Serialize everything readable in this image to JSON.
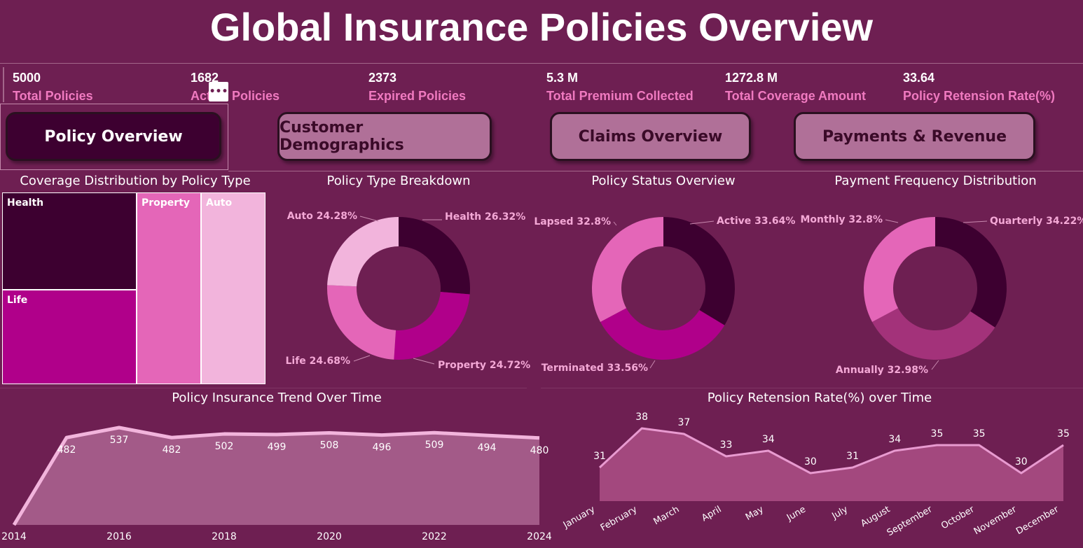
{
  "title": "Global Insurance Policies Overview",
  "kpis": [
    {
      "value": "5000",
      "label": "Total Policies"
    },
    {
      "value": "1682",
      "label": "Active Policies"
    },
    {
      "value": "2373",
      "label": "Expired Policies"
    },
    {
      "value": "5.3 M",
      "label": "Total Premium Collected"
    },
    {
      "value": "1272.8 M",
      "label": "Total Coverage Amount"
    },
    {
      "value": "33.64",
      "label": "Policy Retension Rate(%)"
    }
  ],
  "nav": [
    {
      "label": "Policy Overview",
      "active": true
    },
    {
      "label": "Customer Demographics",
      "active": false
    },
    {
      "label": "Claims Overview",
      "active": false
    },
    {
      "label": "Payments & Revenue",
      "active": false
    }
  ],
  "colors": {
    "background": "#6e1f52",
    "dark": "#3d0030",
    "magenta": "#b0008a",
    "pink": "#e466b8",
    "light": "#f2b4dc",
    "mid": "#a3327a"
  },
  "chart_data": [
    {
      "type": "treemap",
      "title": "Coverage Distribution by Policy Type",
      "categories": [
        "Health",
        "Life",
        "Property",
        "Auto"
      ],
      "values": [
        26.32,
        24.68,
        24.72,
        24.28
      ]
    },
    {
      "type": "pie",
      "title": "Policy Type Breakdown",
      "slices": [
        {
          "name": "Health",
          "value": 26.32,
          "label": "Health 26.32%",
          "color": "#3d0030"
        },
        {
          "name": "Property",
          "value": 24.72,
          "label": "Property 24.72%",
          "color": "#b0008a"
        },
        {
          "name": "Life",
          "value": 24.68,
          "label": "Life 24.68%",
          "color": "#e466b8"
        },
        {
          "name": "Auto",
          "value": 24.28,
          "label": "Auto 24.28%",
          "color": "#f2b4dc"
        }
      ]
    },
    {
      "type": "pie",
      "title": "Policy Status Overview",
      "slices": [
        {
          "name": "Active",
          "value": 33.64,
          "label": "Active 33.64%",
          "color": "#3d0030"
        },
        {
          "name": "Terminated",
          "value": 33.56,
          "label": "Terminated 33.56%",
          "color": "#b0008a"
        },
        {
          "name": "Lapsed",
          "value": 32.8,
          "label": "Lapsed 32.8%",
          "color": "#e466b8"
        }
      ]
    },
    {
      "type": "pie",
      "title": "Payment Frequency Distribution",
      "slices": [
        {
          "name": "Quarterly",
          "value": 34.22,
          "label": "Quarterly 34.22%",
          "color": "#3d0030"
        },
        {
          "name": "Annually",
          "value": 32.98,
          "label": "Annually 32.98%",
          "color": "#a3327a"
        },
        {
          "name": "Monthly",
          "value": 32.8,
          "label": "Monthly 32.8%",
          "color": "#e466b8"
        }
      ]
    },
    {
      "type": "area",
      "title": "Policy Insurance Trend Over Time",
      "x": [
        2014,
        2015,
        2016,
        2017,
        2018,
        2019,
        2020,
        2021,
        2022,
        2023,
        2024
      ],
      "values": [
        0,
        482,
        537,
        482,
        502,
        499,
        508,
        496,
        509,
        494,
        480
      ],
      "data_labels": [
        "",
        "482",
        "537",
        "482",
        "502",
        "499",
        "508",
        "496",
        "509",
        "494",
        "480"
      ],
      "x_ticks": [
        "2014",
        "2016",
        "2018",
        "2020",
        "2022",
        "2024"
      ]
    },
    {
      "type": "area",
      "title": "Policy Retension Rate(%) over Time",
      "categories": [
        "January",
        "February",
        "March",
        "April",
        "May",
        "June",
        "July",
        "August",
        "September",
        "October",
        "November",
        "December"
      ],
      "values": [
        31,
        38,
        37,
        33,
        34,
        30,
        31,
        34,
        35,
        35,
        30,
        35
      ]
    }
  ]
}
